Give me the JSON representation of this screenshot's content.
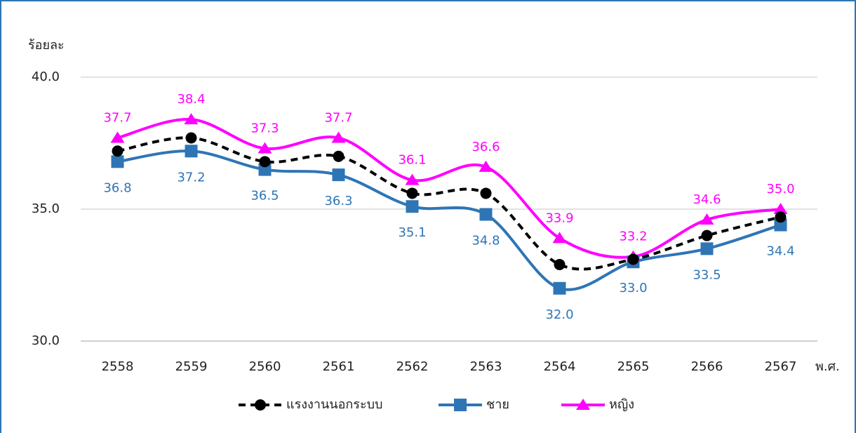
{
  "chart_data": {
    "type": "line",
    "y_label": "ร้อยละ",
    "x_label": "พ.ศ.",
    "categories": [
      "2558",
      "2559",
      "2560",
      "2561",
      "2562",
      "2563",
      "2564",
      "2565",
      "2566",
      "2567"
    ],
    "smooth": true,
    "grid": true,
    "ylim": [
      30,
      40
    ],
    "yticks": [
      {
        "value": 30,
        "label": "30.0"
      },
      {
        "value": 35,
        "label": "35.0"
      },
      {
        "value": 40,
        "label": "40.0"
      }
    ],
    "series": [
      {
        "name": "แรงงานนอกระบบ",
        "color": "#000000",
        "line_style": "dashed",
        "marker": "circle",
        "values": [
          37.2,
          37.7,
          36.8,
          37.0,
          35.6,
          35.6,
          32.9,
          33.1,
          34.0,
          34.7
        ]
      },
      {
        "name": "ชาย",
        "color": "#2e75b6",
        "line_style": "solid",
        "marker": "square",
        "label_position": "below",
        "values": [
          36.8,
          37.2,
          36.5,
          36.3,
          35.1,
          34.8,
          32.0,
          33.0,
          33.5,
          34.4
        ],
        "value_labels": [
          "36.8",
          "37.2",
          "36.5",
          "36.3",
          "35.1",
          "34.8",
          "32.0",
          "33.0",
          "33.5",
          "34.4"
        ]
      },
      {
        "name": "หญิง",
        "color": "#ff00ff",
        "line_style": "solid",
        "marker": "triangle",
        "label_position": "above",
        "values": [
          37.7,
          38.4,
          37.3,
          37.7,
          36.1,
          36.6,
          33.9,
          33.2,
          34.6,
          35.0
        ],
        "value_labels": [
          "37.7",
          "38.4",
          "37.3",
          "37.7",
          "36.1",
          "36.6",
          "33.9",
          "33.2",
          "34.6",
          "35.0"
        ]
      }
    ]
  }
}
